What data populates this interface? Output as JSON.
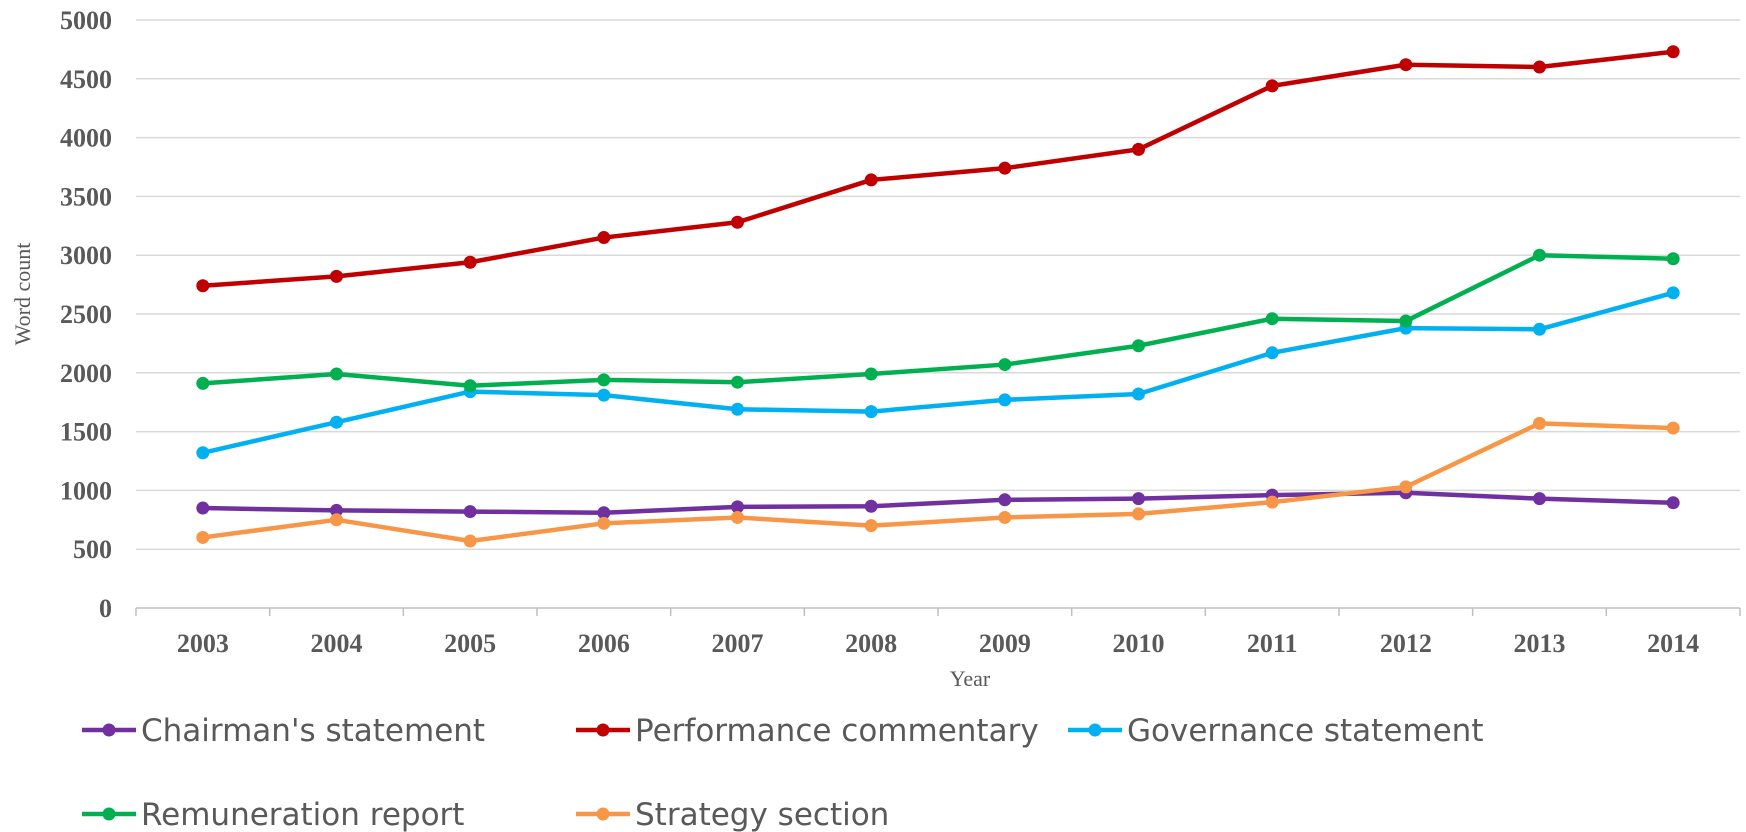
{
  "chart_data": {
    "type": "line",
    "xlabel": "Year",
    "ylabel": "Word count",
    "ylim": [
      0,
      5000
    ],
    "yticks": [
      0,
      500,
      1000,
      1500,
      2000,
      2500,
      3000,
      3500,
      4000,
      4500,
      5000
    ],
    "categories": [
      "2003",
      "2004",
      "2005",
      "2006",
      "2007",
      "2008",
      "2009",
      "2010",
      "2011",
      "2012",
      "2013",
      "2014"
    ],
    "grid": "horizontal",
    "legend_position": "bottom",
    "series": [
      {
        "name": "Chairman's statement",
        "color": "#7030A0",
        "values": [
          850,
          830,
          820,
          810,
          860,
          865,
          920,
          930,
          960,
          980,
          930,
          895
        ]
      },
      {
        "name": "Performance commentary",
        "color": "#C00000",
        "values": [
          2740,
          2820,
          2940,
          3150,
          3280,
          3640,
          3740,
          3900,
          4440,
          4620,
          4600,
          4730
        ]
      },
      {
        "name": "Governance statement",
        "color": "#00B0F0",
        "values": [
          1320,
          1580,
          1840,
          1810,
          1690,
          1670,
          1770,
          1820,
          2170,
          2380,
          2370,
          2680
        ]
      },
      {
        "name": "Remuneration report",
        "color": "#00B050",
        "values": [
          1910,
          1990,
          1890,
          1940,
          1920,
          1990,
          2070,
          2230,
          2460,
          2440,
          3000,
          2970
        ]
      },
      {
        "name": "Strategy section",
        "color": "#F79646",
        "values": [
          600,
          750,
          570,
          720,
          770,
          700,
          770,
          800,
          900,
          1030,
          1570,
          1530
        ]
      }
    ]
  }
}
